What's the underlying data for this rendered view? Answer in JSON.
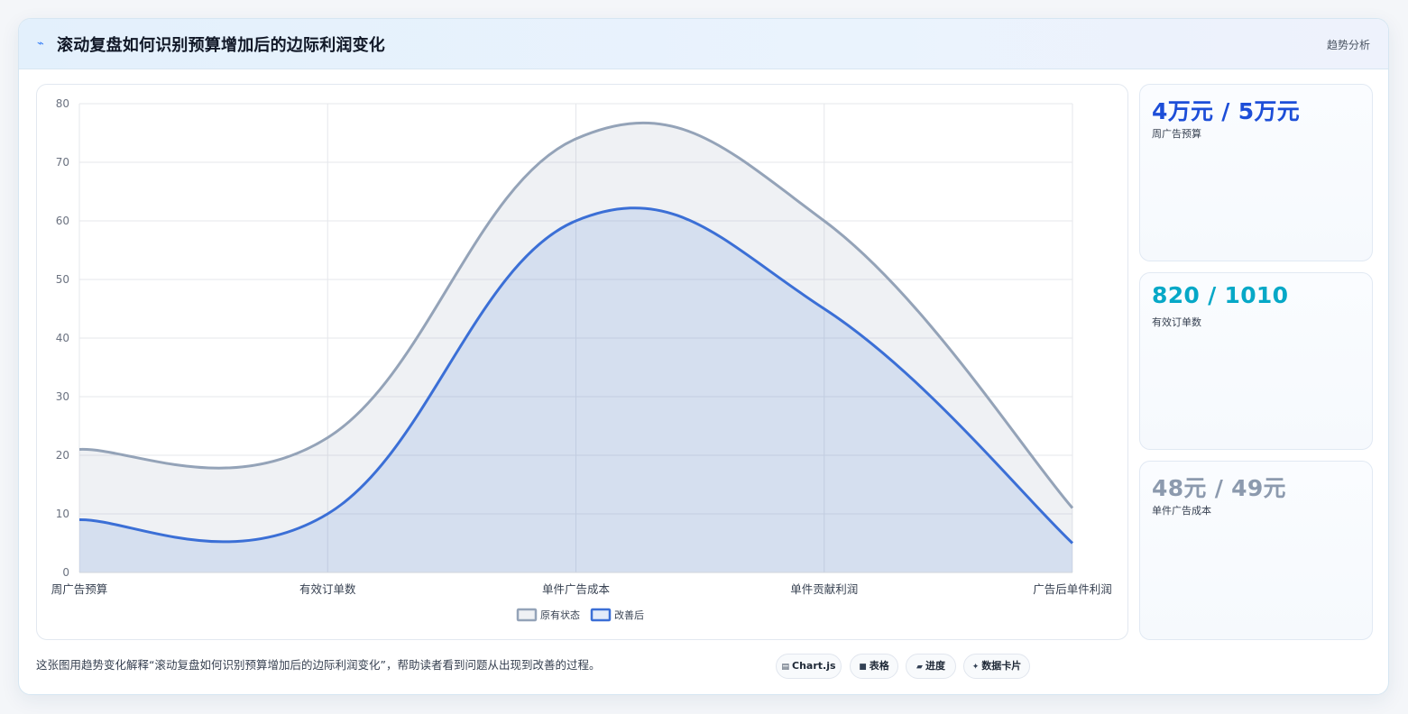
{
  "header": {
    "title": "滚动复盘如何识别预算增加后的边际利润变化",
    "tag": "趋势分析"
  },
  "stats": [
    {
      "value": "4万元 / 5万元",
      "label": "周广告预算",
      "color": "#1d4ed8"
    },
    {
      "value": "820 / 1010",
      "label": "有效订单数",
      "color": "#06a8c7"
    },
    {
      "value": "48元 / 49元",
      "label": "单件广告成本",
      "color": "#8c9aae"
    }
  ],
  "footer": {
    "note": "这张图用趋势变化解释“滚动复盘如何识别预算增加后的边际利润变化”，帮助读者看到问题从出现到改善的过程。"
  },
  "pills": [
    {
      "icon": "▤",
      "icon_name": "chart-icon",
      "label": "Chart.js"
    },
    {
      "icon": "■",
      "icon_name": "table-icon",
      "label": "表格"
    },
    {
      "icon": "▰",
      "icon_name": "progress-icon",
      "label": "进度"
    },
    {
      "icon": "✦",
      "icon_name": "sparkle-icon",
      "label": "数据卡片"
    }
  ],
  "chart_data": {
    "type": "area",
    "categories": [
      "周广告预算",
      "有效订单数",
      "单件广告成本",
      "单件贡献利润",
      "广告后单件利润"
    ],
    "ylim": [
      0,
      80
    ],
    "yticks": [
      0,
      10,
      20,
      30,
      40,
      50,
      60,
      70,
      80
    ],
    "grid": true,
    "legend_position": "bottom",
    "series": [
      {
        "name": "原有状态",
        "values": [
          21,
          23,
          74,
          60,
          11
        ],
        "color": "#94a3b8",
        "fill": "rgba(148,163,184,0.15)"
      },
      {
        "name": "改善后",
        "values": [
          9,
          10,
          60,
          45,
          5
        ],
        "color": "#3b6fd6",
        "fill": "rgba(59,111,214,0.14)"
      }
    ]
  }
}
